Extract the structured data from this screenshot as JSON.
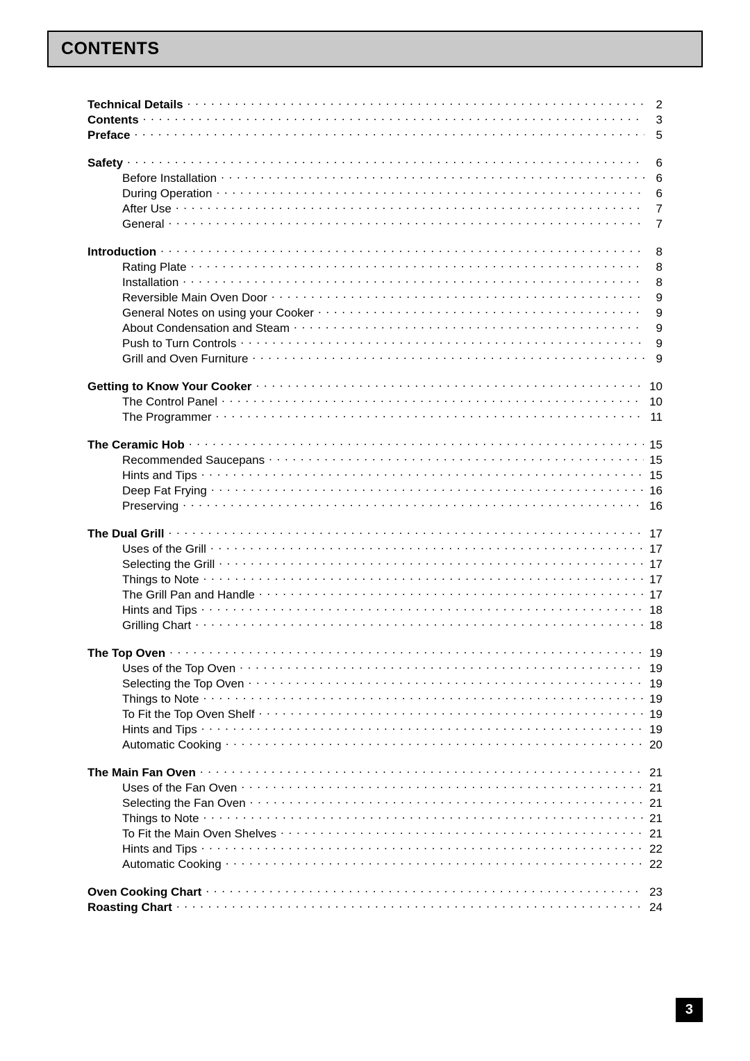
{
  "header": {
    "title": "CONTENTS"
  },
  "pageNumber": "3",
  "groups": [
    {
      "entries": [
        {
          "label": "Technical Details",
          "page": "2",
          "bold": true,
          "sub": false
        },
        {
          "label": "Contents",
          "page": "3",
          "bold": true,
          "sub": false
        },
        {
          "label": "Preface",
          "page": "5",
          "bold": true,
          "sub": false
        }
      ]
    },
    {
      "entries": [
        {
          "label": "Safety",
          "page": "6",
          "bold": true,
          "sub": false
        },
        {
          "label": "Before Installation",
          "page": "6",
          "bold": false,
          "sub": true
        },
        {
          "label": "During Operation",
          "page": "6",
          "bold": false,
          "sub": true
        },
        {
          "label": "After Use",
          "page": "7",
          "bold": false,
          "sub": true
        },
        {
          "label": "General",
          "page": "7",
          "bold": false,
          "sub": true
        }
      ]
    },
    {
      "entries": [
        {
          "label": "Introduction",
          "page": "8",
          "bold": true,
          "sub": false
        },
        {
          "label": "Rating Plate",
          "page": "8",
          "bold": false,
          "sub": true
        },
        {
          "label": "Installation",
          "page": "8",
          "bold": false,
          "sub": true
        },
        {
          "label": "Reversible Main Oven Door",
          "page": "9",
          "bold": false,
          "sub": true
        },
        {
          "label": "General Notes on using your Cooker",
          "page": "9",
          "bold": false,
          "sub": true
        },
        {
          "label": "About Condensation and Steam",
          "page": "9",
          "bold": false,
          "sub": true
        },
        {
          "label": "Push to Turn Controls",
          "page": "9",
          "bold": false,
          "sub": true
        },
        {
          "label": "Grill and Oven Furniture",
          "page": "9",
          "bold": false,
          "sub": true
        }
      ]
    },
    {
      "entries": [
        {
          "label": "Getting to Know Your Cooker",
          "page": "10",
          "bold": true,
          "sub": false
        },
        {
          "label": "The Control Panel",
          "page": "10",
          "bold": false,
          "sub": true
        },
        {
          "label": "The Programmer",
          "page": "11",
          "bold": false,
          "sub": true
        }
      ]
    },
    {
      "entries": [
        {
          "label": "The Ceramic Hob",
          "page": "15",
          "bold": true,
          "sub": false
        },
        {
          "label": "Recommended Saucepans",
          "page": "15",
          "bold": false,
          "sub": true
        },
        {
          "label": "Hints and Tips",
          "page": "15",
          "bold": false,
          "sub": true
        },
        {
          "label": "Deep Fat Frying",
          "page": "16",
          "bold": false,
          "sub": true
        },
        {
          "label": "Preserving",
          "page": "16",
          "bold": false,
          "sub": true
        }
      ]
    },
    {
      "entries": [
        {
          "label": "The Dual Grill",
          "page": "17",
          "bold": true,
          "sub": false
        },
        {
          "label": "Uses of the Grill",
          "page": "17",
          "bold": false,
          "sub": true
        },
        {
          "label": "Selecting the Grill",
          "page": "17",
          "bold": false,
          "sub": true
        },
        {
          "label": "Things to Note",
          "page": "17",
          "bold": false,
          "sub": true
        },
        {
          "label": "The Grill Pan and Handle",
          "page": "17",
          "bold": false,
          "sub": true
        },
        {
          "label": "Hints and Tips",
          "page": "18",
          "bold": false,
          "sub": true
        },
        {
          "label": "Grilling Chart",
          "page": "18",
          "bold": false,
          "sub": true
        }
      ]
    },
    {
      "entries": [
        {
          "label": "The Top Oven",
          "page": "19",
          "bold": true,
          "sub": false
        },
        {
          "label": "Uses of the Top Oven",
          "page": "19",
          "bold": false,
          "sub": true
        },
        {
          "label": "Selecting the Top Oven",
          "page": "19",
          "bold": false,
          "sub": true
        },
        {
          "label": "Things to Note",
          "page": "19",
          "bold": false,
          "sub": true
        },
        {
          "label": "To Fit the Top Oven Shelf",
          "page": "19",
          "bold": false,
          "sub": true
        },
        {
          "label": "Hints and Tips",
          "page": "19",
          "bold": false,
          "sub": true
        },
        {
          "label": "Automatic Cooking",
          "page": "20",
          "bold": false,
          "sub": true
        }
      ]
    },
    {
      "entries": [
        {
          "label": "The Main Fan Oven",
          "page": "21",
          "bold": true,
          "sub": false
        },
        {
          "label": "Uses of the Fan Oven",
          "page": "21",
          "bold": false,
          "sub": true
        },
        {
          "label": "Selecting the Fan Oven",
          "page": "21",
          "bold": false,
          "sub": true
        },
        {
          "label": "Things to Note",
          "page": "21",
          "bold": false,
          "sub": true
        },
        {
          "label": "To Fit the Main Oven Shelves",
          "page": "21",
          "bold": false,
          "sub": true
        },
        {
          "label": "Hints and Tips",
          "page": "22",
          "bold": false,
          "sub": true
        },
        {
          "label": "Automatic Cooking",
          "page": "22",
          "bold": false,
          "sub": true
        }
      ]
    },
    {
      "entries": [
        {
          "label": "Oven Cooking Chart",
          "page": "23",
          "bold": true,
          "sub": false
        },
        {
          "label": "Roasting Chart",
          "page": "24",
          "bold": true,
          "sub": false
        }
      ]
    }
  ]
}
